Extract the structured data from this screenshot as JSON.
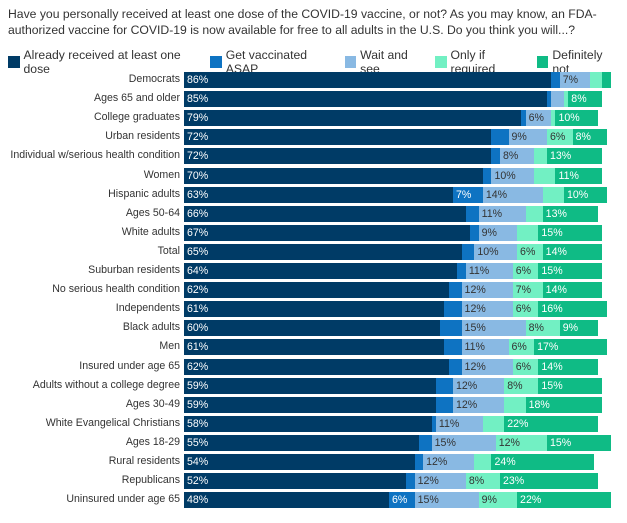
{
  "question": "Have you personally received at least one dose of the COVID-19 vaccine, or not? As you may know, an FDA-authorized vaccine for COVID-19 is now available for free to all adults in the U.S. Do you think you will...?",
  "legend": [
    {
      "label": "Already received at least one dose",
      "color": "#003b66"
    },
    {
      "label": "Get vaccinated ASAP",
      "color": "#0e73c2"
    },
    {
      "label": "Wait and see",
      "color": "#89b9e3"
    },
    {
      "label": "Only if required",
      "color": "#72f0c3"
    },
    {
      "label": "Definitely not",
      "color": "#0fbb85"
    }
  ],
  "chart_data": {
    "type": "bar",
    "orientation": "horizontal",
    "stacked": true,
    "title": "",
    "xlabel": "",
    "ylabel": "",
    "xlim": [
      0,
      100
    ],
    "unit": "%",
    "legend_position": "top",
    "categories": [
      "Democrats",
      "Ages 65 and older",
      "College graduates",
      "Urban residents",
      "Individual w/serious health condition",
      "Women",
      "Hispanic adults",
      "Ages 50-64",
      "White adults",
      "Total",
      "Suburban residents",
      "No serious health condition",
      "Independents",
      "Black adults",
      "Men",
      "Insured under age 65",
      "Adults without a college degree",
      "Ages 30-49",
      "White Evangelical Christians",
      "Ages 18-29",
      "Rural residents",
      "Republicans",
      "Uninsured under age 65"
    ],
    "series": [
      {
        "name": "Already received at least one dose",
        "color": "#003b66",
        "label_color": "#ffffff",
        "values": [
          86,
          85,
          79,
          72,
          72,
          70,
          63,
          66,
          67,
          65,
          64,
          62,
          61,
          60,
          61,
          62,
          59,
          59,
          58,
          55,
          54,
          52,
          48
        ],
        "labeled": [
          true,
          true,
          true,
          true,
          true,
          true,
          true,
          true,
          true,
          true,
          true,
          true,
          true,
          true,
          true,
          true,
          true,
          true,
          true,
          true,
          true,
          true,
          true
        ]
      },
      {
        "name": "Get vaccinated ASAP",
        "color": "#0e73c2",
        "label_color": "#ffffff",
        "values": [
          2,
          1,
          1,
          4,
          2,
          2,
          7,
          3,
          2,
          3,
          2,
          3,
          4,
          5,
          4,
          3,
          4,
          4,
          1,
          3,
          2,
          2,
          6
        ],
        "labeled": [
          false,
          false,
          false,
          false,
          false,
          false,
          true,
          false,
          false,
          false,
          false,
          false,
          false,
          false,
          false,
          false,
          false,
          false,
          false,
          false,
          false,
          false,
          true
        ]
      },
      {
        "name": "Wait and see",
        "color": "#89b9e3",
        "label_color": "#333333",
        "values": [
          7,
          3,
          6,
          9,
          8,
          10,
          14,
          11,
          9,
          10,
          11,
          12,
          12,
          15,
          11,
          12,
          12,
          12,
          11,
          15,
          12,
          12,
          15
        ],
        "labeled": [
          true,
          false,
          true,
          true,
          true,
          true,
          true,
          true,
          true,
          true,
          true,
          true,
          true,
          true,
          true,
          true,
          true,
          true,
          true,
          true,
          true,
          true,
          true
        ]
      },
      {
        "name": "Only if required",
        "color": "#72f0c3",
        "label_color": "#333333",
        "values": [
          3,
          1,
          1,
          6,
          3,
          5,
          5,
          4,
          5,
          6,
          6,
          7,
          6,
          8,
          6,
          6,
          8,
          5,
          5,
          12,
          4,
          8,
          9
        ],
        "labeled": [
          false,
          false,
          false,
          true,
          false,
          false,
          false,
          false,
          false,
          true,
          true,
          true,
          true,
          true,
          true,
          true,
          true,
          false,
          false,
          true,
          false,
          true,
          true
        ]
      },
      {
        "name": "Definitely not",
        "color": "#0fbb85",
        "label_color": "#ffffff",
        "values": [
          2,
          8,
          10,
          8,
          13,
          11,
          10,
          13,
          15,
          14,
          15,
          14,
          16,
          9,
          17,
          14,
          15,
          18,
          22,
          15,
          24,
          23,
          22
        ],
        "labeled": [
          false,
          true,
          true,
          true,
          true,
          true,
          true,
          true,
          true,
          true,
          true,
          true,
          true,
          true,
          true,
          true,
          true,
          true,
          true,
          true,
          true,
          true,
          true
        ]
      }
    ]
  }
}
